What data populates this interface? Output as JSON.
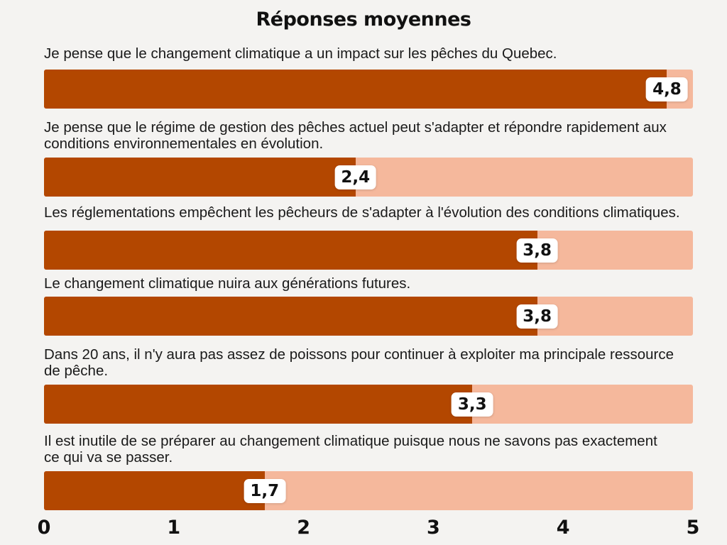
{
  "chart_data": {
    "type": "bar",
    "orientation": "horizontal",
    "title": "Réponses moyennes",
    "categories": [
      [
        "Je pense que le changement climatique a un impact sur les pêches du Quebec."
      ],
      [
        "Je pense que le régime de gestion des pêches actuel peut s'adapter et répondre rapidement aux",
        "conditions environnementales en évolution."
      ],
      [
        "Les réglementations empêchent les pêcheurs de s'adapter à l'évolution des conditions climatiques."
      ],
      [
        "Le changement climatique nuira aux générations futures."
      ],
      [
        "Dans 20 ans, il n'y aura pas assez de poissons pour continuer à exploiter ma principale ressource",
        "de pêche."
      ],
      [
        "Il est inutile de se préparer au changement climatique puisque nous ne savons pas exactement",
        "ce qui va se passer."
      ]
    ],
    "values": [
      4.8,
      2.4,
      3.8,
      3.8,
      3.3,
      1.7
    ],
    "value_labels": [
      "4,8",
      "2,4",
      "3,8",
      "3,8",
      "3,3",
      "1,7"
    ],
    "xlim": [
      0,
      5
    ],
    "ticks": [
      "0",
      "1",
      "2",
      "3",
      "4",
      "5"
    ],
    "grid": false,
    "colors": {
      "fill": "#b34700",
      "track": "#f5b89c"
    }
  }
}
